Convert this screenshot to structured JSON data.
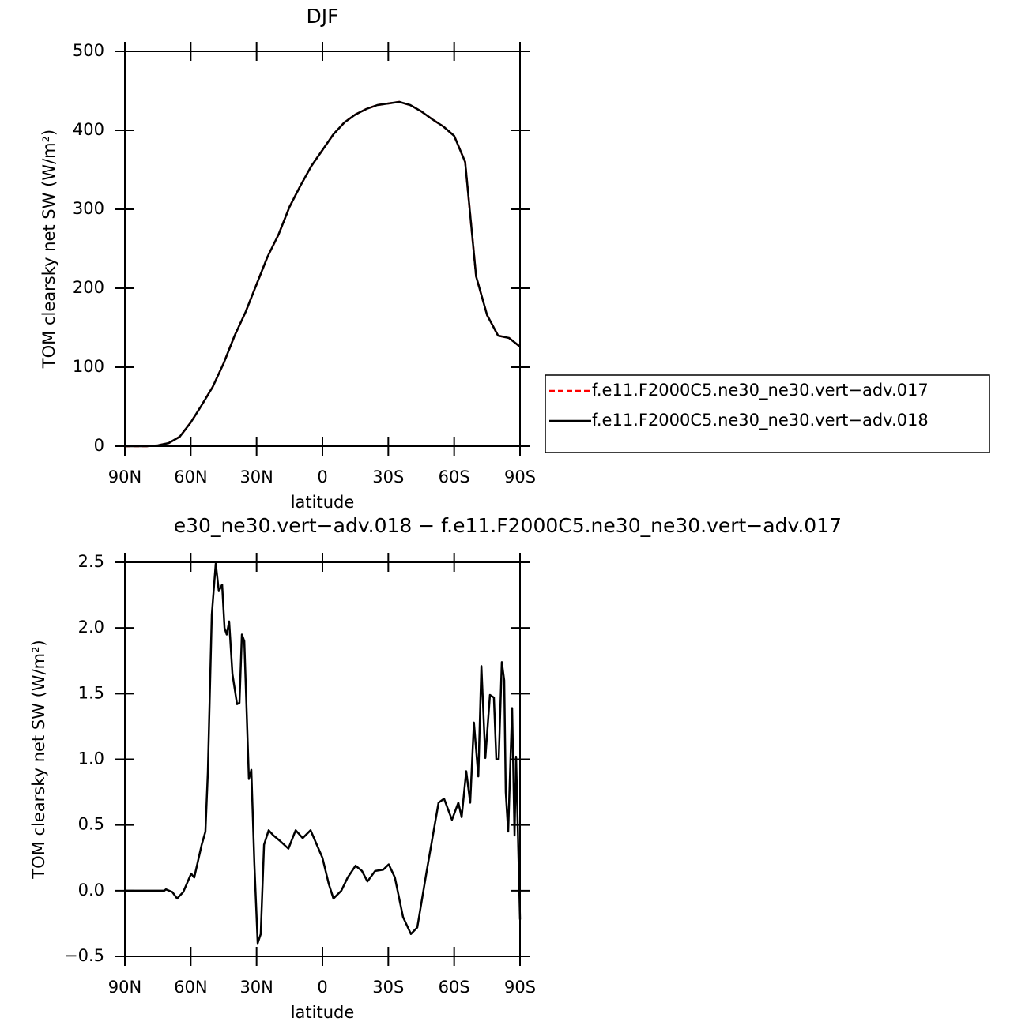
{
  "chart_data": [
    {
      "type": "line",
      "title": "DJF",
      "xlabel": "latitude",
      "ylabel": "TOM clearsky net SW (W/m²)",
      "xlim": [
        90,
        -90
      ],
      "xticks": [
        {
          "value": 90,
          "label": "90N"
        },
        {
          "value": 60,
          "label": "60N"
        },
        {
          "value": 30,
          "label": "30N"
        },
        0,
        {
          "value": -30,
          "label": "30S"
        },
        {
          "value": -60,
          "label": "60S"
        },
        {
          "value": -90,
          "label": "90S"
        }
      ],
      "ylim": [
        0,
        500
      ],
      "yticks": [
        0,
        100,
        200,
        300,
        400,
        500
      ],
      "legend": "right",
      "x": [
        90,
        85,
        80,
        75,
        70,
        65,
        60,
        55,
        50,
        45,
        40,
        35,
        30,
        25,
        20,
        15,
        10,
        5,
        0,
        -5,
        -10,
        -15,
        -20,
        -25,
        -30,
        -35,
        -40,
        -45,
        -50,
        -55,
        -60,
        -65,
        -70,
        -75,
        -80,
        -85,
        -90
      ],
      "series": [
        {
          "name": "f.e11.F2000C5.ne30_ne30.vert−adv.017",
          "color": "#ff0000",
          "dashed": true,
          "values": [
            0,
            0,
            0,
            1,
            4,
            12,
            30,
            52,
            75,
            105,
            140,
            170,
            205,
            240,
            268,
            303,
            330,
            355,
            375,
            395,
            410,
            420,
            427,
            432,
            434,
            436,
            432,
            424,
            414,
            405,
            393,
            360,
            215,
            166,
            140,
            137,
            126
          ]
        },
        {
          "name": "f.e11.F2000C5.ne30_ne30.vert−adv.018",
          "color": "#000000",
          "dashed": false,
          "values": [
            0,
            0,
            0,
            1,
            4,
            12,
            30,
            52,
            75,
            105,
            140,
            170,
            205,
            240,
            268,
            303,
            330,
            355,
            375,
            395,
            410,
            420,
            427,
            432,
            434,
            436,
            432,
            424,
            414,
            405,
            393,
            360,
            215,
            166,
            140,
            137,
            126
          ]
        }
      ]
    },
    {
      "type": "line",
      "title": "e30_ne30.vert−adv.018 − f.e11.F2000C5.ne30_ne30.vert−adv.017",
      "xlabel": "latitude",
      "ylabel": "TOM clearsky net SW (W/m²)",
      "xlim": [
        90,
        -90
      ],
      "xticks": [
        {
          "value": 90,
          "label": "90N"
        },
        {
          "value": 60,
          "label": "60N"
        },
        {
          "value": 30,
          "label": "30N"
        },
        0,
        {
          "value": -30,
          "label": "30S"
        },
        {
          "value": -60,
          "label": "60S"
        },
        {
          "value": -90,
          "label": "90S"
        }
      ],
      "ylim": [
        -0.5,
        2.5
      ],
      "yticks": [
        {
          "value": -0.5,
          "label": "−0.5"
        },
        {
          "value": 0,
          "label": "0.0"
        },
        0.5,
        {
          "value": 1,
          "label": "1.0"
        },
        1.5,
        {
          "value": 2,
          "label": "2.0"
        },
        2.5
      ],
      "x": [
        90,
        72,
        71.3,
        68.4,
        66.2,
        63.4,
        59.8,
        58.4,
        55,
        53.3,
        52.2,
        50.4,
        48.6,
        47.2,
        45.7,
        44.6,
        43.6,
        42.5,
        41,
        38.9,
        37.8,
        36.7,
        35.6,
        33.5,
        32.4,
        31,
        29.5,
        28.1,
        26.6,
        24.5,
        22.3,
        19.4,
        15.5,
        12.2,
        9,
        5.4,
        0,
        -2.9,
        -5,
        -8.6,
        -11.5,
        -15.1,
        -18,
        -20.5,
        -24,
        -27.7,
        -30.2,
        -33,
        -36.7,
        -40.3,
        -43.2,
        -47.5,
        -52.9,
        -55.4,
        -59,
        -61.9,
        -63.4,
        -65.5,
        -67.3,
        -69,
        -71,
        -72.4,
        -74.2,
        -76.3,
        -78.1,
        -79.2,
        -80.3,
        -81.7,
        -82.8,
        -83.5,
        -84.6,
        -86.4,
        -87.5,
        -88.2,
        -90
      ],
      "series": [
        {
          "color": "#000000",
          "dashed": false,
          "values": [
            0,
            0,
            0.01,
            -0.01,
            -0.06,
            -0.01,
            0.13,
            0.1,
            0.35,
            0.45,
            0.9,
            2.1,
            2.49,
            2.28,
            2.33,
            2.0,
            1.95,
            2.05,
            1.65,
            1.42,
            1.43,
            1.95,
            1.9,
            0.85,
            0.92,
            0.2,
            -0.4,
            -0.33,
            0.35,
            0.46,
            0.42,
            0.38,
            0.32,
            0.46,
            0.4,
            0.46,
            0.25,
            0.05,
            -0.06,
            0.0,
            0.1,
            0.19,
            0.15,
            0.07,
            0.15,
            0.16,
            0.2,
            0.1,
            -0.2,
            -0.33,
            -0.28,
            0.15,
            0.67,
            0.7,
            0.54,
            0.67,
            0.56,
            0.91,
            0.67,
            1.28,
            0.87,
            1.71,
            1.01,
            1.49,
            1.47,
            1.0,
            1.0,
            1.74,
            1.6,
            0.75,
            0.45,
            1.39,
            0.42,
            1.02,
            -0.22
          ]
        }
      ]
    }
  ]
}
